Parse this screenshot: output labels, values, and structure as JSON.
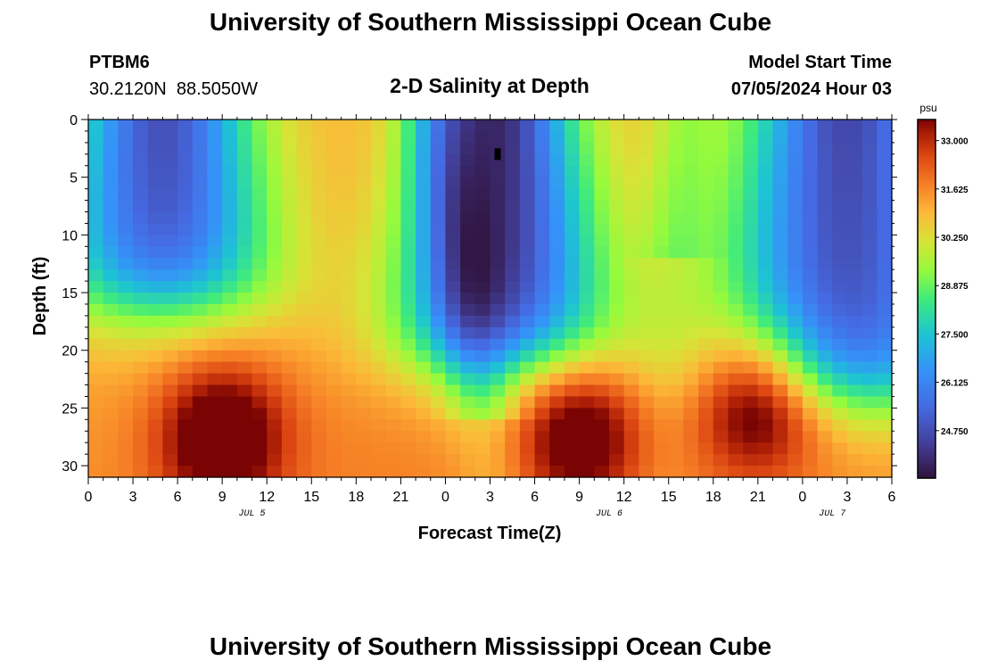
{
  "header": {
    "title": "University of Southern Mississippi Ocean Cube",
    "station_id": "PTBM6",
    "station_coords": "30.2120N  88.5050W",
    "subtitle": "2-D Salinity at Depth",
    "model_start_label": "Model Start Time",
    "model_start_value": "07/05/2024 Hour 03"
  },
  "footer": {
    "title": "University of Southern Mississippi Ocean Cube"
  },
  "chart_data": {
    "type": "heatmap",
    "title": "2-D Salinity at Depth",
    "xlabel": "Forecast Time(Z)",
    "ylabel": "Depth (ft)",
    "x_ticks": [
      "0",
      "3",
      "6",
      "9",
      "12",
      "15",
      "18",
      "21",
      "0",
      "3",
      "6",
      "9",
      "12",
      "15",
      "18",
      "21",
      "0",
      "3",
      "6"
    ],
    "x_range_hours": [
      0,
      54
    ],
    "date_labels": [
      {
        "text": "JUL 5",
        "hour": 11
      },
      {
        "text": "JUL 6",
        "hour": 35
      },
      {
        "text": "JUL 7",
        "hour": 50
      }
    ],
    "y_ticks": [
      "0",
      "5",
      "10",
      "15",
      "20",
      "25",
      "30"
    ],
    "y_tick_values": [
      0,
      5,
      10,
      15,
      20,
      25,
      30
    ],
    "y_range_ft": [
      0,
      31
    ],
    "y_inverted": true,
    "colorbar": {
      "unit": "psu",
      "min": 23.4,
      "max": 33.6,
      "tick_labels": [
        "33.000",
        "31.625",
        "30.250",
        "28.875",
        "27.500",
        "26.125",
        "24.750"
      ],
      "tick_values": [
        33.0,
        31.625,
        30.25,
        28.875,
        27.5,
        26.125,
        24.75
      ]
    },
    "grid_cols": 54,
    "grid_rows": 31,
    "field_features": [
      {
        "kind": "fresh_lens",
        "center_hour": 5,
        "center_depth_ft": 4,
        "min_psu": 24.8,
        "bottom_depth_ft": 16
      },
      {
        "kind": "fresh_lens",
        "center_hour": 27.5,
        "center_depth_ft": 3,
        "min_psu": 23.9,
        "bottom_depth_ft": 21
      },
      {
        "kind": "fresh_lens",
        "center_hour": 51,
        "center_depth_ft": 4,
        "min_psu": 24.6,
        "bottom_depth_ft": 24
      },
      {
        "kind": "salty_core",
        "center_hour": 9,
        "center_depth_ft": 27.5,
        "max_psu": 33.3
      },
      {
        "kind": "salty_core",
        "center_hour": 33,
        "center_depth_ft": 27,
        "max_psu": 33.1
      },
      {
        "kind": "salty_core",
        "center_hour": 45,
        "center_depth_ft": 24,
        "max_psu": 33.6
      },
      {
        "kind": "mid_plateau",
        "hours": [
          16,
          24
        ],
        "psu": 31.3
      }
    ]
  }
}
